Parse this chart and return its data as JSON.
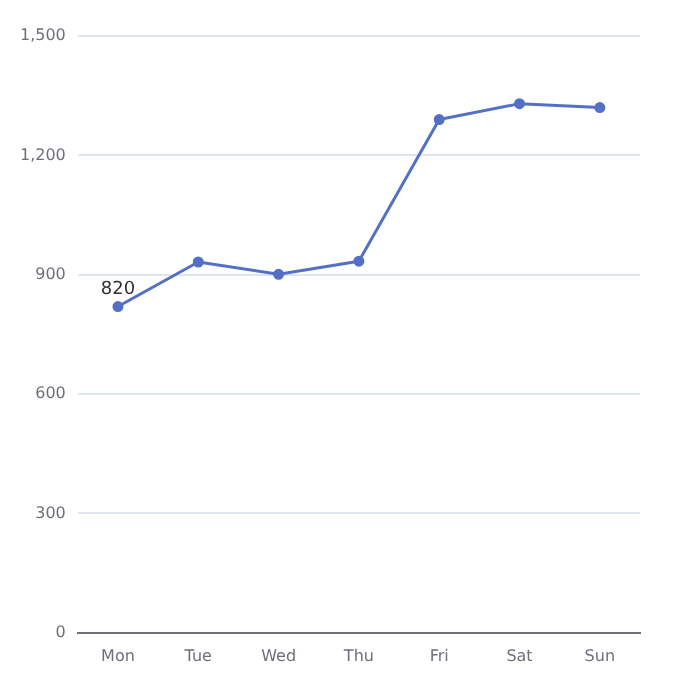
{
  "chart_data": {
    "type": "line",
    "categories": [
      "Mon",
      "Tue",
      "Wed",
      "Thu",
      "Fri",
      "Sat",
      "Sun"
    ],
    "series": [
      {
        "color": "#5470c6",
        "values": [
          820,
          932,
          901,
          934,
          1290,
          1330,
          1320
        ],
        "value_labels": [
          "820",
          null,
          null,
          null,
          null,
          null,
          null
        ]
      }
    ],
    "ylim": [
      0,
      1500
    ],
    "yticks": [
      0,
      300,
      600,
      900,
      {
        "value": 1200,
        "label": "1,200"
      },
      {
        "value": 1500,
        "label": "1,500"
      }
    ],
    "grid": "y",
    "legend": false,
    "marker": "circle",
    "line_style": "solid"
  }
}
